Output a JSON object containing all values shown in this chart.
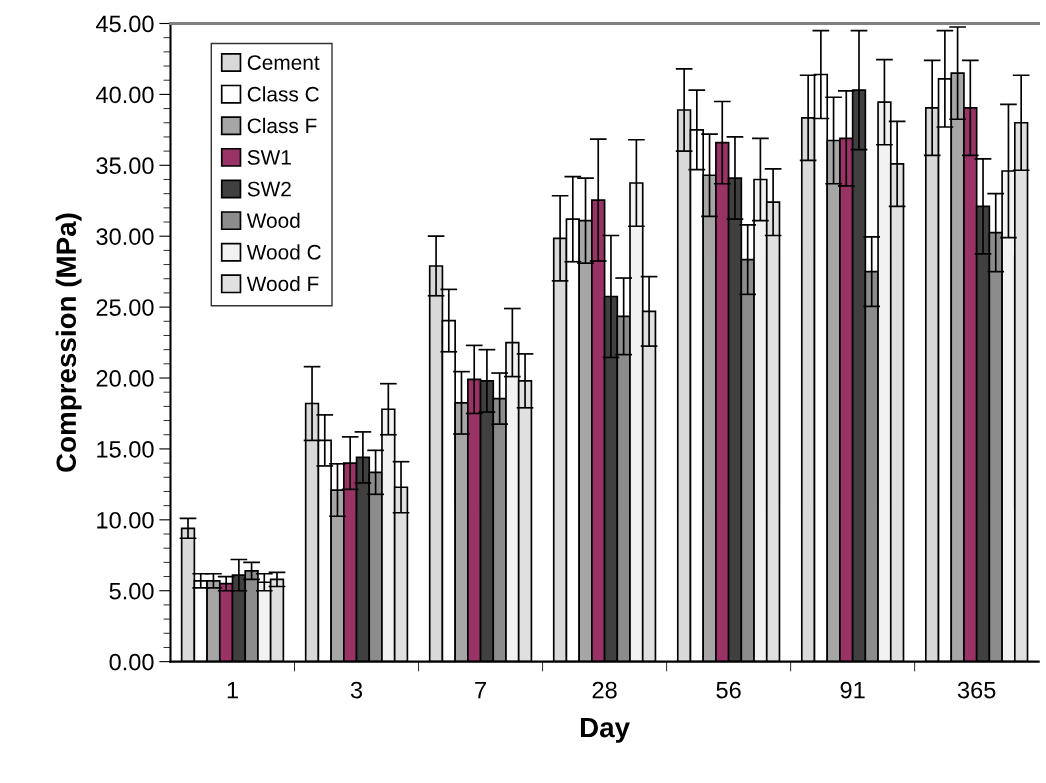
{
  "chart_data": {
    "type": "bar",
    "xlabel": "Day",
    "ylabel": "Compression (MPa)",
    "categories": [
      "1",
      "3",
      "7",
      "28",
      "56",
      "91",
      "365"
    ],
    "series": [
      {
        "name": "Cement",
        "color": "#d9d9d9",
        "values": [
          9.4,
          18.2,
          27.9,
          29.85,
          38.9,
          38.35,
          39.05
        ],
        "errors": [
          0.7,
          2.6,
          2.1,
          3.0,
          2.9,
          3.0,
          3.35
        ]
      },
      {
        "name": "Class C",
        "color": "#ffffff",
        "values": [
          5.7,
          15.6,
          24.05,
          31.2,
          37.5,
          41.4,
          41.1
        ],
        "errors": [
          0.5,
          1.8,
          2.2,
          3.0,
          2.8,
          3.1,
          3.4
        ]
      },
      {
        "name": "Class F",
        "color": "#a6a6a6",
        "values": [
          5.7,
          12.1,
          18.25,
          31.1,
          34.3,
          36.75,
          41.5
        ],
        "errors": [
          0.5,
          1.85,
          2.2,
          3.0,
          2.9,
          3.05,
          3.25
        ]
      },
      {
        "name": "SW1",
        "color": "#993366",
        "values": [
          5.5,
          14.0,
          19.9,
          32.55,
          36.6,
          36.9,
          39.05
        ],
        "errors": [
          0.5,
          1.85,
          2.4,
          4.3,
          2.9,
          3.35,
          3.35
        ]
      },
      {
        "name": "SW2",
        "color": "#404040",
        "values": [
          6.1,
          14.4,
          19.8,
          25.75,
          34.1,
          40.3,
          32.1
        ],
        "errors": [
          1.1,
          1.8,
          2.2,
          4.3,
          2.9,
          4.2,
          3.35
        ]
      },
      {
        "name": "Wood",
        "color": "#8c8c8c",
        "values": [
          6.4,
          13.35,
          18.55,
          24.35,
          28.35,
          27.5,
          30.25
        ],
        "errors": [
          0.6,
          1.55,
          1.8,
          2.7,
          2.45,
          2.45,
          2.75
        ]
      },
      {
        "name": "Wood C",
        "color": "#f2f2f2",
        "values": [
          5.6,
          17.8,
          22.5,
          33.75,
          34.0,
          39.45,
          34.6
        ],
        "errors": [
          0.6,
          1.8,
          2.4,
          3.05,
          2.9,
          3.0,
          4.7
        ]
      },
      {
        "name": "Wood F",
        "color": "#e0e0e0",
        "values": [
          5.8,
          12.3,
          19.8,
          24.7,
          32.4,
          35.1,
          38.0
        ],
        "errors": [
          0.5,
          1.8,
          1.9,
          2.45,
          2.35,
          3.0,
          3.35
        ]
      }
    ],
    "ylim": [
      0,
      45
    ],
    "yticks": [
      {
        "value": 0,
        "label": "0.00"
      },
      {
        "value": 5,
        "label": "5.00"
      },
      {
        "value": 10,
        "label": "10.00"
      },
      {
        "value": 15,
        "label": "15.00"
      },
      {
        "value": 20,
        "label": "20.00"
      },
      {
        "value": 25,
        "label": "25.00"
      },
      {
        "value": 30,
        "label": "30.00"
      },
      {
        "value": 35,
        "label": "35.00"
      },
      {
        "value": 40,
        "label": "40.00"
      },
      {
        "value": 45,
        "label": "45.00"
      }
    ],
    "grid": false,
    "legend": "top left"
  }
}
